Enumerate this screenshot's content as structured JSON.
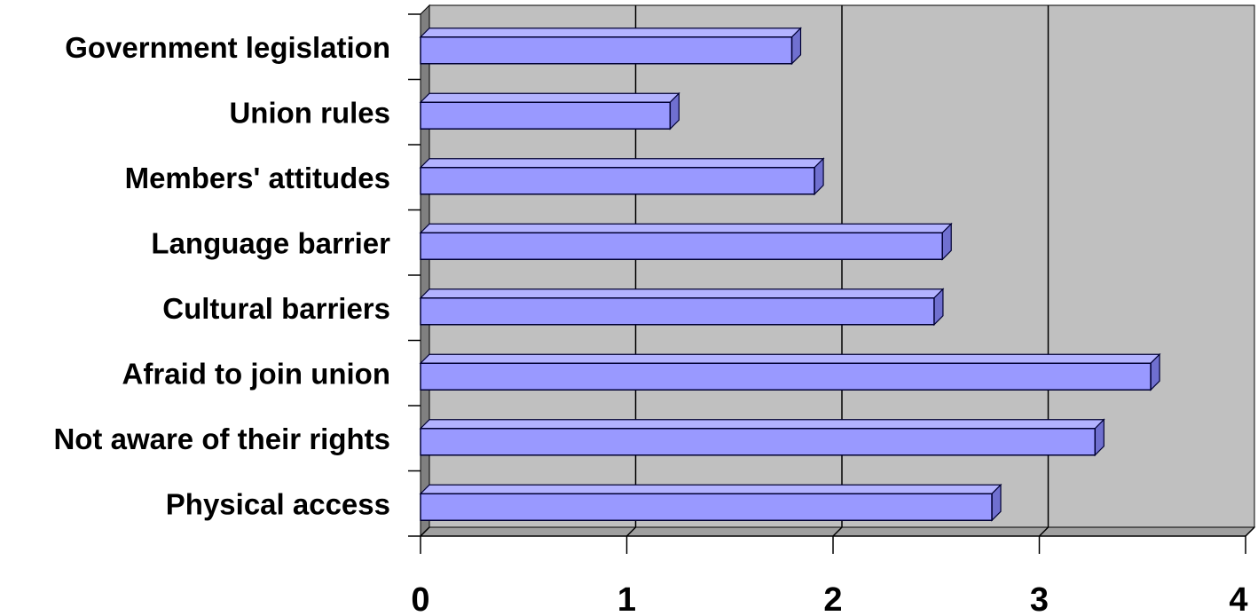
{
  "chart_data": {
    "type": "bar",
    "orientation": "horizontal",
    "style": "3d",
    "categories": [
      "Physical access",
      "Not aware of their rights",
      "Afraid to join union",
      "Cultural barriers",
      "Language barrier",
      "Members' attitudes",
      "Union rules",
      "Government legislation"
    ],
    "values": [
      2.77,
      3.27,
      3.54,
      2.49,
      2.53,
      1.91,
      1.21,
      1.8
    ],
    "xlim": [
      0,
      4
    ],
    "xticks": [
      "0",
      "1",
      "2",
      "3",
      "4"
    ],
    "grid": true,
    "colors": {
      "bar_face": "#9999ff",
      "bar_top": "#b3b3ff",
      "bar_side": "#7070d0",
      "bar_stroke": "#000033",
      "plot_back": "#c0c0c0",
      "plot_floor": "#a0a0a0"
    }
  }
}
